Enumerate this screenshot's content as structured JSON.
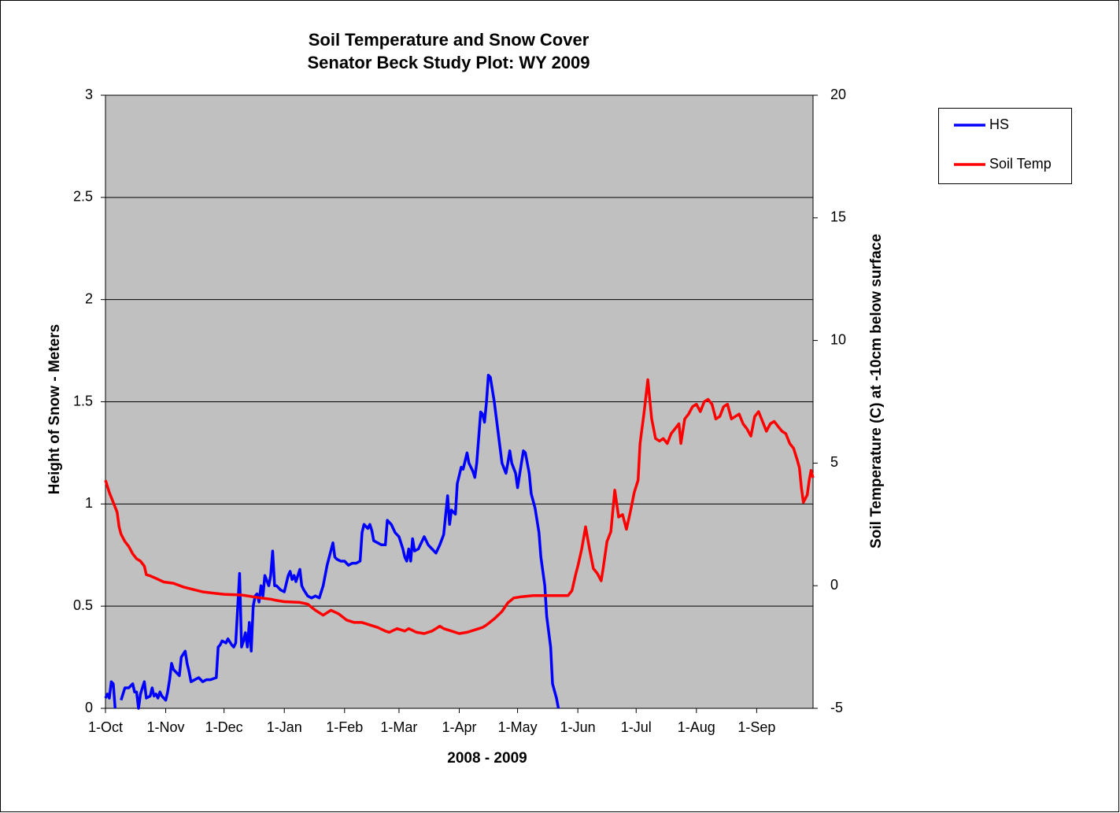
{
  "chart_data": {
    "type": "line",
    "title": "Soil Temperature and Snow Cover",
    "subtitle": "Senator Beck Study Plot: WY 2009",
    "x_label": "2008 - 2009",
    "y_label": "Height of Snow - Meters",
    "y2_label": "Soil Temperature (C) at -10cm below surface",
    "xlim": [
      0,
      364
    ],
    "xticks": [
      {
        "value": 0,
        "label": "1-Oct"
      },
      {
        "value": 31,
        "label": "1-Nov"
      },
      {
        "value": 61,
        "label": "1-Dec"
      },
      {
        "value": 92,
        "label": "1-Jan"
      },
      {
        "value": 123,
        "label": "1-Feb"
      },
      {
        "value": 151,
        "label": "1-Mar"
      },
      {
        "value": 182,
        "label": "1-Apr"
      },
      {
        "value": 212,
        "label": "1-May"
      },
      {
        "value": 243,
        "label": "1-Jun"
      },
      {
        "value": 273,
        "label": "1-Jul"
      },
      {
        "value": 304,
        "label": "1-Aug"
      },
      {
        "value": 335,
        "label": "1-Sep"
      }
    ],
    "ylim": [
      0,
      3
    ],
    "yticks": [
      0,
      0.5,
      1,
      1.5,
      2,
      2.5,
      3
    ],
    "y2lim": [
      -5,
      20
    ],
    "y2ticks": [
      -5,
      0,
      5,
      10,
      15,
      20
    ],
    "grid": true,
    "legend": "right",
    "series": [
      {
        "name": "HS",
        "color": "#0000ff",
        "x": [
          0,
          1,
          2,
          3,
          4,
          5,
          6,
          8,
          10,
          12,
          14,
          15,
          16,
          17,
          18,
          19,
          20,
          21,
          23,
          24,
          25,
          26,
          27,
          28,
          29,
          30,
          31,
          32,
          33,
          34,
          35,
          37,
          38,
          39,
          41,
          42,
          43,
          44,
          46,
          48,
          50,
          52,
          54,
          57,
          58,
          59,
          60,
          62,
          63,
          65,
          66,
          67,
          69,
          70,
          71,
          72,
          73,
          74,
          75,
          76,
          77,
          78,
          79,
          80,
          81,
          82,
          84,
          85,
          86,
          87,
          88,
          90,
          92,
          94,
          95,
          96,
          97,
          98,
          100,
          101,
          102,
          104,
          106,
          108,
          110,
          112,
          114,
          117,
          118,
          119,
          121,
          123,
          125,
          127,
          129,
          131,
          132,
          133,
          135,
          136,
          137,
          138,
          140,
          142,
          144,
          145,
          147,
          149,
          151,
          153,
          154,
          155,
          156,
          157,
          158,
          159,
          161,
          164,
          166,
          168,
          170,
          172,
          174,
          176,
          177,
          178,
          180,
          181,
          183,
          184,
          186,
          187,
          189,
          190,
          191,
          193,
          194,
          195,
          196,
          197,
          198,
          200,
          202,
          204,
          206,
          207,
          208,
          209,
          211,
          212,
          214,
          215,
          216,
          218,
          219,
          221,
          223,
          224,
          226,
          227,
          229,
          230,
          232,
          233
        ],
        "values": [
          0.05,
          0.07,
          0.05,
          0.13,
          0.12,
          0,
          null,
          0.04,
          0.1,
          0.1,
          0.12,
          0.08,
          0.08,
          0,
          0.07,
          0.1,
          0.13,
          0.05,
          0.06,
          0.1,
          0.06,
          0.07,
          0.05,
          0.08,
          0.06,
          0.05,
          0.04,
          0.08,
          0.14,
          0.22,
          0.19,
          0.17,
          0.16,
          0.25,
          0.28,
          0.22,
          0.18,
          0.13,
          0.14,
          0.15,
          0.13,
          0.14,
          0.14,
          0.15,
          0.3,
          0.31,
          0.33,
          0.32,
          0.34,
          0.31,
          0.3,
          0.32,
          0.66,
          0.3,
          0.33,
          0.37,
          0.3,
          0.42,
          0.28,
          0.5,
          0.55,
          0.56,
          0.52,
          0.6,
          0.55,
          0.65,
          0.6,
          0.65,
          0.77,
          0.6,
          0.6,
          0.58,
          0.57,
          0.65,
          0.67,
          0.63,
          0.65,
          0.62,
          0.68,
          0.6,
          0.58,
          0.55,
          0.54,
          0.55,
          0.54,
          0.6,
          0.7,
          0.81,
          0.74,
          0.73,
          0.72,
          0.72,
          0.7,
          0.71,
          0.71,
          0.72,
          0.86,
          0.9,
          0.88,
          0.9,
          0.87,
          0.82,
          0.81,
          0.8,
          0.8,
          0.92,
          0.9,
          0.86,
          0.84,
          0.78,
          0.74,
          0.72,
          0.78,
          0.72,
          0.83,
          0.77,
          0.78,
          0.84,
          0.8,
          0.78,
          0.76,
          0.8,
          0.85,
          1.04,
          0.9,
          0.97,
          0.95,
          1.1,
          1.18,
          1.17,
          1.25,
          1.2,
          1.16,
          1.13,
          1.2,
          1.45,
          1.44,
          1.4,
          1.5,
          1.63,
          1.62,
          1.5,
          1.35,
          1.2,
          1.15,
          1.2,
          1.26,
          1.2,
          1.15,
          1.08,
          1.2,
          1.26,
          1.25,
          1.15,
          1.05,
          0.98,
          0.86,
          0.74,
          0.6,
          0.45,
          0.3,
          0.12,
          0.05,
          0
        ]
      },
      {
        "name": "Soil Temp",
        "color": "#ff0000",
        "axis": "y2",
        "x": [
          0,
          2,
          4,
          6,
          7,
          8,
          10,
          12,
          14,
          16,
          18,
          20,
          21,
          23,
          26,
          30,
          35,
          40,
          45,
          50,
          55,
          61,
          70,
          80,
          85,
          88,
          92,
          100,
          104,
          108,
          112,
          114,
          116,
          120,
          124,
          128,
          132,
          136,
          140,
          144,
          146,
          150,
          154,
          156,
          160,
          164,
          168,
          172,
          174,
          178,
          182,
          186,
          190,
          194,
          196,
          200,
          204,
          207,
          210,
          214,
          220,
          230,
          238,
          240,
          242,
          243,
          245,
          247,
          249,
          251,
          253,
          255,
          256,
          258,
          260,
          262,
          264,
          266,
          268,
          270,
          272,
          274,
          275,
          277,
          279,
          281,
          283,
          285,
          287,
          289,
          291,
          293,
          295,
          296,
          298,
          300,
          302,
          304,
          306,
          308,
          310,
          312,
          314,
          316,
          318,
          320,
          322,
          324,
          326,
          328,
          330,
          332,
          334,
          336,
          338,
          340,
          342,
          344,
          346,
          348,
          350,
          352,
          354,
          356,
          357,
          358,
          359,
          361,
          362,
          363,
          364
        ],
        "values": [
          4.3,
          3.8,
          3.4,
          3.0,
          2.4,
          2.1,
          1.8,
          1.6,
          1.3,
          1.1,
          1.0,
          0.8,
          0.45,
          0.4,
          0.3,
          0.15,
          0.1,
          -0.05,
          -0.15,
          -0.25,
          -0.3,
          -0.35,
          -0.38,
          -0.5,
          -0.55,
          -0.6,
          -0.65,
          -0.68,
          -0.75,
          -1.0,
          -1.2,
          -1.1,
          -1.0,
          -1.15,
          -1.4,
          -1.5,
          -1.5,
          -1.6,
          -1.7,
          -1.85,
          -1.9,
          -1.75,
          -1.85,
          -1.75,
          -1.9,
          -1.95,
          -1.85,
          -1.65,
          -1.75,
          -1.85,
          -1.95,
          -1.9,
          -1.8,
          -1.7,
          -1.6,
          -1.35,
          -1.05,
          -0.7,
          -0.5,
          -0.45,
          -0.4,
          -0.4,
          -0.4,
          -0.2,
          0.5,
          0.8,
          1.5,
          2.4,
          1.5,
          0.7,
          0.5,
          0.2,
          0.7,
          1.8,
          2.2,
          3.9,
          2.8,
          2.9,
          2.3,
          3.0,
          3.8,
          4.3,
          5.8,
          7.0,
          8.4,
          6.8,
          6.0,
          5.9,
          6.0,
          5.8,
          6.2,
          6.4,
          6.6,
          5.8,
          6.8,
          7.0,
          7.3,
          7.4,
          7.1,
          7.5,
          7.6,
          7.4,
          6.8,
          6.9,
          7.3,
          7.4,
          6.8,
          6.9,
          7.0,
          6.6,
          6.4,
          6.1,
          6.9,
          7.1,
          6.7,
          6.3,
          6.6,
          6.7,
          6.5,
          6.3,
          6.2,
          5.8,
          5.6,
          5.1,
          4.8,
          4.0,
          3.4,
          3.7,
          4.3,
          4.7,
          4.4
        ]
      }
    ]
  }
}
